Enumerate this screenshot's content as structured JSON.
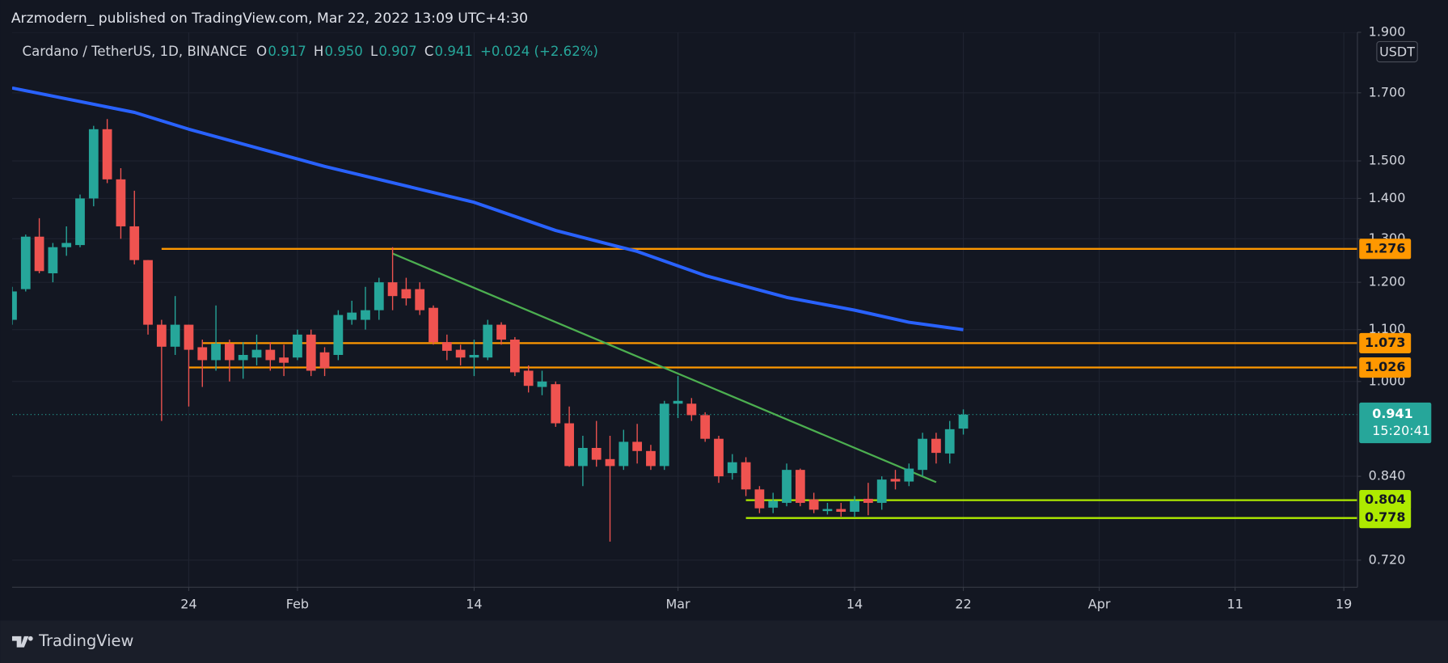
{
  "header": "Arzmodern_ published on TradingView.com, Mar 22, 2022 13:09 UTC+4:30",
  "footer": "TradingView",
  "chart_data": {
    "type": "candlestick",
    "legend": {
      "symbol": "Cardano / TetherUS, 1D, BINANCE",
      "o_key": "O",
      "o": "0.917",
      "h_key": "H",
      "h": "0.950",
      "l_key": "L",
      "l": "0.907",
      "c_key": "C",
      "c": "0.941",
      "change": "+0.024 (+2.62%)"
    },
    "y_unit": "USDT",
    "countdown": "15:20:41",
    "up_color": "#26a69a",
    "down_color": "#ef5350",
    "log_scale": true,
    "grid": true,
    "ylim": [
      0.685,
      1.9
    ],
    "yticks": [
      {
        "value": 1.9,
        "label": "1.900"
      },
      {
        "value": 1.7,
        "label": "1.700"
      },
      {
        "value": 1.5,
        "label": "1.500"
      },
      {
        "value": 1.4,
        "label": "1.400"
      },
      {
        "value": 1.3,
        "label": "1.300"
      },
      {
        "value": 1.2,
        "label": "1.200"
      },
      {
        "value": 1.1,
        "label": "1.100"
      },
      {
        "value": 1,
        "label": "1.000"
      },
      {
        "value": 0.84,
        "label": "0.840"
      },
      {
        "value": 0.72,
        "label": "0.720"
      }
    ],
    "xlim": [
      "2022-01-11",
      "2022-04-20"
    ],
    "xticks": [
      {
        "value": "2022-01-24",
        "label": "24"
      },
      {
        "value": "2022-02-01",
        "label": "Feb"
      },
      {
        "value": "2022-02-14",
        "label": "14"
      },
      {
        "value": "2022-03-01",
        "label": "Mar"
      },
      {
        "value": "2022-03-14",
        "label": "14"
      },
      {
        "value": "2022-03-22",
        "label": "22"
      },
      {
        "value": "2022-04-01",
        "label": "Apr"
      },
      {
        "value": "2022-04-11",
        "label": "11"
      },
      {
        "value": "2022-04-19",
        "label": "19"
      }
    ],
    "x": [
      "2022-01-11",
      "2022-01-12",
      "2022-01-13",
      "2022-01-14",
      "2022-01-15",
      "2022-01-16",
      "2022-01-17",
      "2022-01-18",
      "2022-01-19",
      "2022-01-20",
      "2022-01-21",
      "2022-01-22",
      "2022-01-23",
      "2022-01-24",
      "2022-01-25",
      "2022-01-26",
      "2022-01-27",
      "2022-01-28",
      "2022-01-29",
      "2022-01-30",
      "2022-01-31",
      "2022-02-01",
      "2022-02-02",
      "2022-02-03",
      "2022-02-04",
      "2022-02-05",
      "2022-02-06",
      "2022-02-07",
      "2022-02-08",
      "2022-02-09",
      "2022-02-10",
      "2022-02-11",
      "2022-02-12",
      "2022-02-13",
      "2022-02-14",
      "2022-02-15",
      "2022-02-16",
      "2022-02-17",
      "2022-02-18",
      "2022-02-19",
      "2022-02-20",
      "2022-02-21",
      "2022-02-22",
      "2022-02-23",
      "2022-02-24",
      "2022-02-25",
      "2022-02-26",
      "2022-02-27",
      "2022-02-28",
      "2022-03-01",
      "2022-03-02",
      "2022-03-03",
      "2022-03-04",
      "2022-03-05",
      "2022-03-06",
      "2022-03-07",
      "2022-03-08",
      "2022-03-09",
      "2022-03-10",
      "2022-03-11",
      "2022-03-12",
      "2022-03-13",
      "2022-03-14",
      "2022-03-15",
      "2022-03-16",
      "2022-03-17",
      "2022-03-18",
      "2022-03-19",
      "2022-03-20",
      "2022-03-21",
      "2022-03-22"
    ],
    "open": [
      1.12,
      1.185,
      1.305,
      1.22,
      1.28,
      1.285,
      1.4,
      1.59,
      1.45,
      1.33,
      1.25,
      1.11,
      1.066,
      1.11,
      1.065,
      1.04,
      1.072,
      1.04,
      1.045,
      1.06,
      1.045,
      1.045,
      1.09,
      1.055,
      1.05,
      1.12,
      1.12,
      1.14,
      1.2,
      1.185,
      1.185,
      1.145,
      1.075,
      1.06,
      1.045,
      1.045,
      1.11,
      1.08,
      1.02,
      0.99,
      0.995,
      0.926,
      0.856,
      0.885,
      0.867,
      0.856,
      0.895,
      0.88,
      0.856,
      0.96,
      0.96,
      0.94,
      0.9,
      0.845,
      0.862,
      0.82,
      0.793,
      0.8,
      0.85,
      0.805,
      0.788,
      0.791,
      0.787,
      0.806,
      0.8,
      0.836,
      0.832,
      0.85,
      0.9,
      0.876,
      0.917
    ],
    "high": [
      1.19,
      1.31,
      1.35,
      1.29,
      1.33,
      1.41,
      1.6,
      1.62,
      1.48,
      1.42,
      1.25,
      1.12,
      1.17,
      1.11,
      1.08,
      1.15,
      1.08,
      1.075,
      1.09,
      1.075,
      1.07,
      1.1,
      1.1,
      1.065,
      1.14,
      1.16,
      1.19,
      1.21,
      1.28,
      1.21,
      1.2,
      1.15,
      1.09,
      1.07,
      1.08,
      1.12,
      1.115,
      1.085,
      1.03,
      1.02,
      1.0,
      0.955,
      0.905,
      0.93,
      0.905,
      0.915,
      0.925,
      0.89,
      0.965,
      1.01,
      0.97,
      0.945,
      0.905,
      0.875,
      0.87,
      0.825,
      0.815,
      0.86,
      0.852,
      0.815,
      0.8,
      0.8,
      0.81,
      0.83,
      0.84,
      0.85,
      0.86,
      0.91,
      0.91,
      0.93,
      0.95
    ],
    "low": [
      1.11,
      1.18,
      1.22,
      1.2,
      1.26,
      1.28,
      1.38,
      1.44,
      1.3,
      1.24,
      1.09,
      0.93,
      1.05,
      0.955,
      0.99,
      1.02,
      1.0,
      1.005,
      1.03,
      1.02,
      1.01,
      1.04,
      1.01,
      1.01,
      1.04,
      1.11,
      1.1,
      1.12,
      1.14,
      1.15,
      1.13,
      1.07,
      1.04,
      1.03,
      1.01,
      1.04,
      1.07,
      1.01,
      0.98,
      0.975,
      0.92,
      0.855,
      0.825,
      0.855,
      0.745,
      0.85,
      0.86,
      0.85,
      0.85,
      0.935,
      0.93,
      0.895,
      0.83,
      0.835,
      0.81,
      0.785,
      0.785,
      0.795,
      0.795,
      0.785,
      0.783,
      0.78,
      0.78,
      0.782,
      0.79,
      0.82,
      0.825,
      0.84,
      0.86,
      0.86,
      0.907
    ],
    "close": [
      1.18,
      1.305,
      1.225,
      1.28,
      1.29,
      1.4,
      1.59,
      1.45,
      1.33,
      1.25,
      1.11,
      1.066,
      1.11,
      1.06,
      1.04,
      1.072,
      1.04,
      1.05,
      1.06,
      1.04,
      1.035,
      1.09,
      1.02,
      1.025,
      1.13,
      1.135,
      1.14,
      1.2,
      1.17,
      1.165,
      1.14,
      1.075,
      1.058,
      1.045,
      1.05,
      1.11,
      1.08,
      1.017,
      0.992,
      1.0,
      0.926,
      0.856,
      0.885,
      0.866,
      0.856,
      0.895,
      0.88,
      0.856,
      0.96,
      0.965,
      0.94,
      0.9,
      0.84,
      0.862,
      0.82,
      0.792,
      0.803,
      0.85,
      0.8,
      0.79,
      0.791,
      0.787,
      0.803,
      0.8,
      0.835,
      0.832,
      0.852,
      0.9,
      0.877,
      0.916,
      0.941
    ],
    "ma": {
      "color": "#2962ff",
      "x": [
        "2022-01-11",
        "2022-01-20",
        "2022-01-24",
        "2022-02-03",
        "2022-02-14",
        "2022-02-20",
        "2022-02-26",
        "2022-03-03",
        "2022-03-09",
        "2022-03-14",
        "2022-03-18",
        "2022-03-22"
      ],
      "values": [
        1.715,
        1.64,
        1.59,
        1.485,
        1.39,
        1.32,
        1.27,
        1.215,
        1.167,
        1.14,
        1.115,
        1.1
      ]
    },
    "trendline": {
      "color": "#4caf50",
      "x": [
        "2022-02-08",
        "2022-03-20"
      ],
      "values": [
        1.265,
        0.831
      ]
    },
    "levels": [
      {
        "value": 1.276,
        "color": "#ff9800",
        "start": "2022-01-22"
      },
      {
        "value": 1.073,
        "color": "#ff9800",
        "start": "2022-01-25"
      },
      {
        "value": 1.026,
        "color": "#ff9800",
        "start": "2022-01-24"
      },
      {
        "value": 0.804,
        "color": "#aeea00",
        "start": "2022-03-06"
      },
      {
        "value": 0.778,
        "color": "#aeea00",
        "start": "2022-03-06"
      }
    ]
  }
}
